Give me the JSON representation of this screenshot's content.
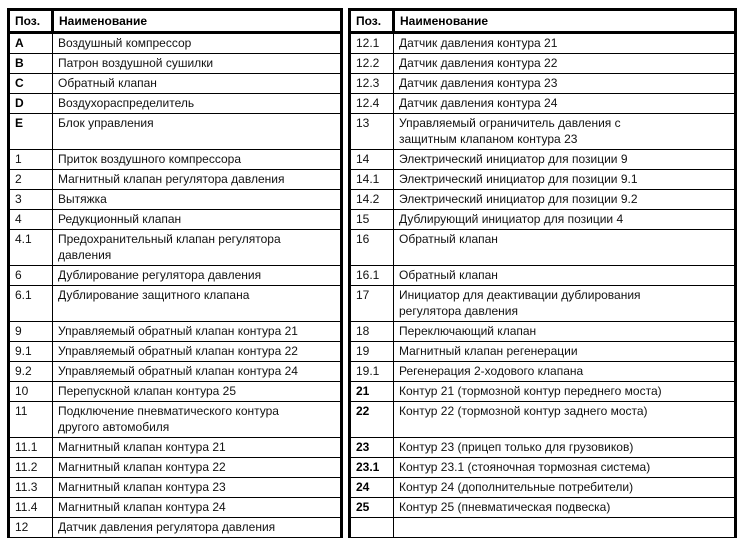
{
  "header": {
    "pos": "Поз.",
    "name": "Наименование"
  },
  "left_table": {
    "rows": [
      {
        "pos": "A",
        "name": "Воздушный компрессор",
        "bold": true
      },
      {
        "pos": "B",
        "name": "Патрон воздушной сушилки",
        "bold": true
      },
      {
        "pos": "C",
        "name": "Обратный клапан",
        "bold": true
      },
      {
        "pos": "D",
        "name": "Воздухораспределитель",
        "bold": true
      },
      {
        "pos": "E",
        "name": "Блок управления",
        "bold": true
      },
      {
        "pos": "1",
        "name": "Приток воздушного компрессора",
        "bold": false
      },
      {
        "pos": "2",
        "name": "Магнитный клапан регулятора давления",
        "bold": false
      },
      {
        "pos": "3",
        "name": "Вытяжка",
        "bold": false
      },
      {
        "pos": "4",
        "name": "Редукционный клапан",
        "bold": false
      },
      {
        "pos": "4.1",
        "name": "Предохранительный клапан регулятора\nдавления",
        "bold": false
      },
      {
        "pos": "6",
        "name": "Дублирование регулятора давления",
        "bold": false
      },
      {
        "pos": "6.1",
        "name": "Дублирование защитного клапана",
        "bold": false
      },
      {
        "pos": "9",
        "name": "Управляемый обратный клапан контура 21",
        "bold": false
      },
      {
        "pos": "9.1",
        "name": "Управляемый обратный клапан контура 22",
        "bold": false
      },
      {
        "pos": "9.2",
        "name": "Управляемый обратный клапан контура 24",
        "bold": false
      },
      {
        "pos": "10",
        "name": "Перепускной клапан контура 25",
        "bold": false
      },
      {
        "pos": "11",
        "name": "Подключение пневматического контура\nдругого автомобиля",
        "bold": false
      },
      {
        "pos": "11.1",
        "name": "Магнитный клапан контура 21",
        "bold": false
      },
      {
        "pos": "11.2",
        "name": "Магнитный клапан контура 22",
        "bold": false
      },
      {
        "pos": "11.3",
        "name": "Магнитный клапан контура 23",
        "bold": false
      },
      {
        "pos": "11.4",
        "name": "Магнитный клапан контура 24",
        "bold": false
      },
      {
        "pos": "12",
        "name": "Датчик давления регулятора давления",
        "bold": false
      }
    ]
  },
  "right_table": {
    "rows": [
      {
        "pos": "12.1",
        "name": "Датчик давления контура 21",
        "bold": false
      },
      {
        "pos": "12.2",
        "name": "Датчик давления контура 22",
        "bold": false
      },
      {
        "pos": "12.3",
        "name": "Датчик давления контура 23",
        "bold": false
      },
      {
        "pos": "12.4",
        "name": "Датчик давления контура 24",
        "bold": false
      },
      {
        "pos": "13",
        "name": "Управляемый ограничитель давления с\nзащитным клапаном контура 23",
        "bold": false
      },
      {
        "pos": "14",
        "name": "Электрический инициатор для позиции 9",
        "bold": false
      },
      {
        "pos": "14.1",
        "name": "Электрический инициатор для позиции 9.1",
        "bold": false
      },
      {
        "pos": "14.2",
        "name": "Электрический инициатор для позиции 9.2",
        "bold": false
      },
      {
        "pos": "15",
        "name": "Дублирующий инициатор для позиции 4",
        "bold": false
      },
      {
        "pos": "16",
        "name": "Обратный клапан",
        "bold": false
      },
      {
        "pos": "16.1",
        "name": "Обратный клапан",
        "bold": false
      },
      {
        "pos": "17",
        "name": "Инициатор для деактивации дублирования\nрегулятора давления",
        "bold": false
      },
      {
        "pos": "18",
        "name": "Переключающий клапан",
        "bold": false
      },
      {
        "pos": "19",
        "name": "Магнитный клапан регенерации",
        "bold": false
      },
      {
        "pos": "19.1",
        "name": "Регенерация 2-ходового клапана",
        "bold": false
      },
      {
        "pos": "21",
        "name": "Контур 21 (тормозной контур переднего моста)",
        "bold": true
      },
      {
        "pos": "22",
        "name": "Контур 22 (тормозной контур заднего моста)",
        "bold": true
      },
      {
        "pos": "23",
        "name": "Контур 23 (прицеп только для грузовиков)",
        "bold": true
      },
      {
        "pos": "23.1",
        "name": "Контур 23.1 (стояночная тормозная система)",
        "bold": true
      },
      {
        "pos": "24",
        "name": "Контур 24 (дополнительные потребители)",
        "bold": true
      },
      {
        "pos": "25",
        "name": "Контур 25 (пневматическая подвеска)",
        "bold": true
      },
      {
        "pos": "",
        "name": "",
        "bold": false
      }
    ]
  },
  "colors": {
    "border": "#000000",
    "text": "#111111",
    "background": "#ffffff"
  }
}
